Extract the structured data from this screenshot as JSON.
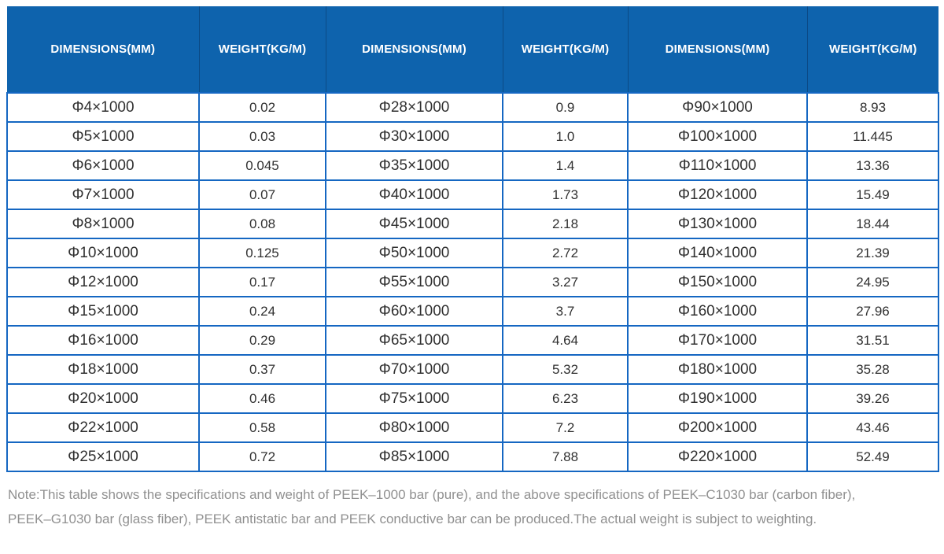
{
  "colors": {
    "header_bg": "#0e63ad",
    "header_divider": "#0b4a86",
    "header_text": "#ffffff",
    "table_border": "#1567c2",
    "cell_text": "#303030",
    "note_text": "#909090",
    "row_bg": "#ffffff"
  },
  "chart_data": {
    "type": "table",
    "columns": [
      "DIMENSIONS(MM)",
      "WEIGHT(KG/M)",
      "DIMENSIONS(MM)",
      "WEIGHT(KG/M)",
      "DIMENSIONS(MM)",
      "WEIGHT(KG/M)"
    ],
    "rows": [
      [
        "Φ4×1000",
        "0.02",
        "Φ28×1000",
        "0.9",
        "Φ90×1000",
        "8.93"
      ],
      [
        "Φ5×1000",
        "0.03",
        "Φ30×1000",
        "1.0",
        "Φ100×1000",
        "11.445"
      ],
      [
        "Φ6×1000",
        "0.045",
        "Φ35×1000",
        "1.4",
        "Φ110×1000",
        "13.36"
      ],
      [
        "Φ7×1000",
        "0.07",
        "Φ40×1000",
        "1.73",
        "Φ120×1000",
        "15.49"
      ],
      [
        "Φ8×1000",
        "0.08",
        "Φ45×1000",
        "2.18",
        "Φ130×1000",
        "18.44"
      ],
      [
        "Φ10×1000",
        "0.125",
        "Φ50×1000",
        "2.72",
        "Φ140×1000",
        "21.39"
      ],
      [
        "Φ12×1000",
        "0.17",
        "Φ55×1000",
        "3.27",
        "Φ150×1000",
        "24.95"
      ],
      [
        "Φ15×1000",
        "0.24",
        "Φ60×1000",
        "3.7",
        "Φ160×1000",
        "27.96"
      ],
      [
        "Φ16×1000",
        "0.29",
        "Φ65×1000",
        "4.64",
        "Φ170×1000",
        "31.51"
      ],
      [
        "Φ18×1000",
        "0.37",
        "Φ70×1000",
        "5.32",
        "Φ180×1000",
        "35.28"
      ],
      [
        "Φ20×1000",
        "0.46",
        "Φ75×1000",
        "6.23",
        "Φ190×1000",
        "39.26"
      ],
      [
        "Φ22×1000",
        "0.58",
        "Φ80×1000",
        "7.2",
        "Φ200×1000",
        "43.46"
      ],
      [
        "Φ25×1000",
        "0.72",
        "Φ85×1000",
        "7.88",
        "Φ220×1000",
        "52.49"
      ]
    ],
    "note": "Note:This table shows the specifications and weight of PEEK–1000 bar (pure), and the above specifications of PEEK–C1030 bar (carbon fiber), PEEK–G1030 bar (glass fiber), PEEK antistatic bar and PEEK conductive bar can be produced.The actual weight is subject to weighting."
  },
  "note": {
    "line1": "Note:This table shows the specifications and weight of PEEK–1000 bar (pure), and the above specifications of PEEK–C1030 bar (carbon fiber),",
    "line2": "PEEK–G1030 bar (glass fiber), PEEK antistatic bar and PEEK conductive bar can be produced.The actual weight is subject to weighting."
  }
}
